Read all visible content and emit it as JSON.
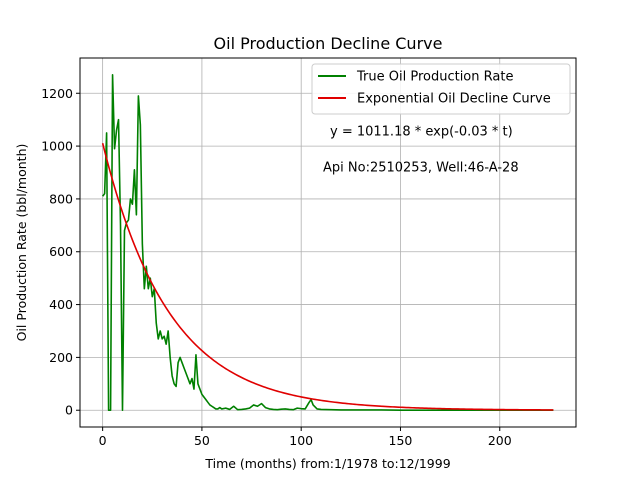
{
  "chart_data": {
    "type": "line",
    "title": "Oil Production Decline Curve",
    "xlabel": "Time (months) from:1/1978 to:12/1999",
    "ylabel": "Oil Production Rate (bbl/month)",
    "xlim": [
      -11.4,
      238.4
    ],
    "ylim": [
      -63.5,
      1333.5
    ],
    "x_ticks": [
      0,
      50,
      100,
      150,
      200
    ],
    "y_ticks": [
      0,
      200,
      400,
      600,
      800,
      1000,
      1200
    ],
    "grid": true,
    "legend_position": "top-right",
    "annotations": [
      "y = 1011.18 * exp(-0.03 * t)",
      "Api No:2510253, Well:46-A-28"
    ],
    "series": [
      {
        "name": "True Oil Production Rate",
        "color": "#008000",
        "x": [
          0,
          1,
          2,
          3,
          4,
          5,
          6,
          7,
          8,
          9,
          10,
          11,
          12,
          13,
          14,
          15,
          16,
          17,
          18,
          19,
          20,
          21,
          22,
          23,
          24,
          25,
          26,
          27,
          28,
          29,
          30,
          31,
          32,
          33,
          34,
          35,
          36,
          37,
          38,
          39,
          40,
          41,
          42,
          43,
          44,
          45,
          46,
          47,
          48,
          49,
          50,
          51,
          52,
          53,
          54,
          55,
          56,
          57,
          58,
          59,
          60,
          62,
          64,
          66,
          68,
          70,
          72,
          74,
          76,
          78,
          80,
          82,
          84,
          86,
          88,
          90,
          92,
          94,
          96,
          98,
          100,
          102,
          104,
          105,
          106,
          108,
          110,
          115,
          120,
          130,
          140,
          150,
          160,
          170,
          180,
          190,
          200,
          210,
          220,
          227
        ],
        "values": [
          810,
          820,
          1050,
          0,
          0,
          1270,
          990,
          1060,
          1100,
          700,
          0,
          680,
          710,
          720,
          800,
          780,
          910,
          740,
          1190,
          1080,
          630,
          460,
          545,
          460,
          500,
          430,
          460,
          330,
          270,
          300,
          270,
          280,
          250,
          300,
          200,
          130,
          100,
          90,
          180,
          200,
          180,
          160,
          140,
          120,
          100,
          120,
          80,
          210,
          100,
          80,
          60,
          50,
          40,
          30,
          20,
          15,
          10,
          5,
          5,
          10,
          5,
          8,
          3,
          15,
          2,
          3,
          5,
          8,
          20,
          15,
          25,
          10,
          5,
          3,
          2,
          4,
          5,
          3,
          2,
          8,
          6,
          5,
          30,
          40,
          20,
          5,
          3,
          2,
          1,
          1,
          1,
          0,
          0,
          0,
          0,
          0,
          0,
          0,
          0,
          0
        ]
      },
      {
        "name": "Exponential Oil Decline Curve",
        "color": "#e00000",
        "a": 1011.18,
        "b": -0.03,
        "x_range": [
          0,
          227
        ]
      }
    ]
  }
}
